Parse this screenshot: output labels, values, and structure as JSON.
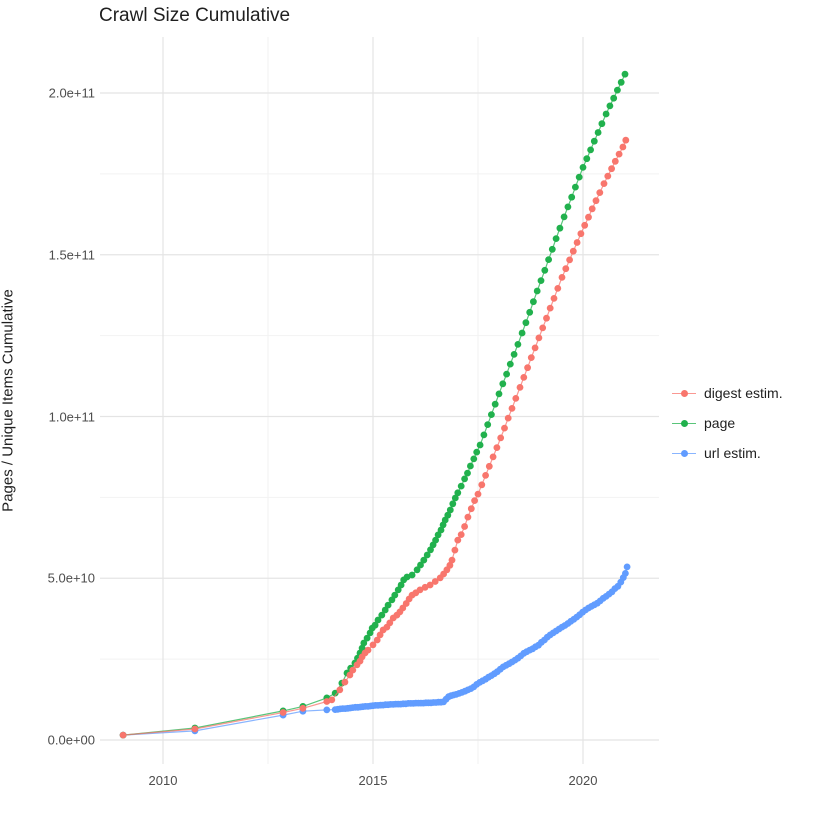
{
  "title": "Crawl Size Cumulative",
  "y_axis": {
    "label": "Pages / Unique Items Cumulative",
    "ticks": [
      "2.0e+11",
      "1.5e+11",
      "1.0e+11",
      "5.0e+10",
      "0.0e+00"
    ],
    "tick_values_billions": [
      200,
      150,
      100,
      50,
      0
    ]
  },
  "x_axis": {
    "ticks": [
      "2010",
      "2015",
      "2020"
    ],
    "tick_values": [
      2010,
      2015,
      2020
    ]
  },
  "legend": {
    "position": "right",
    "items": [
      {
        "label": "digest estim.",
        "color": "#F8766D"
      },
      {
        "label": "page",
        "color": "#21B14D"
      },
      {
        "label": "url estim.",
        "color": "#619CFF"
      }
    ]
  },
  "chart_data": {
    "type": "scatter",
    "subtype": "points-with-lines",
    "title": "Crawl Size Cumulative",
    "xlabel": "",
    "ylabel": "Pages / Unique Items Cumulative",
    "units": "billions (1e9) of pages / unique items",
    "xlim": [
      2008.5,
      2021.8
    ],
    "ylim_billions": [
      0,
      217
    ],
    "grid": true,
    "legend_position": "right",
    "series": [
      {
        "name": "digest estim.",
        "color": "#F8766D",
        "points": [
          [
            2009.05,
            1.5
          ],
          [
            2010.76,
            3.4
          ],
          [
            2012.86,
            8.5
          ],
          [
            2013.33,
            9.8
          ],
          [
            2013.9,
            11.9
          ],
          [
            2014.02,
            12.4
          ],
          [
            2014.21,
            15.5
          ],
          [
            2014.33,
            17.9
          ],
          [
            2014.45,
            20.1
          ],
          [
            2014.52,
            21.6
          ],
          [
            2014.62,
            23.2
          ],
          [
            2014.69,
            24.4
          ],
          [
            2014.74,
            25.7
          ],
          [
            2014.81,
            26.9
          ],
          [
            2014.88,
            27.8
          ],
          [
            2015.0,
            29.4
          ],
          [
            2015.1,
            30.9
          ],
          [
            2015.17,
            32.5
          ],
          [
            2015.24,
            34.0
          ],
          [
            2015.33,
            34.9
          ],
          [
            2015.4,
            36.2
          ],
          [
            2015.48,
            37.7
          ],
          [
            2015.57,
            38.6
          ],
          [
            2015.64,
            39.6
          ],
          [
            2015.71,
            40.8
          ],
          [
            2015.79,
            42.2
          ],
          [
            2015.86,
            43.6
          ],
          [
            2015.93,
            44.8
          ],
          [
            2016.02,
            45.5
          ],
          [
            2016.12,
            46.4
          ],
          [
            2016.24,
            47.2
          ],
          [
            2016.36,
            47.9
          ],
          [
            2016.48,
            49.0
          ],
          [
            2016.6,
            50.1
          ],
          [
            2016.68,
            51.3
          ],
          [
            2016.76,
            52.6
          ],
          [
            2016.83,
            54.0
          ],
          [
            2016.88,
            55.6
          ],
          [
            2016.95,
            58.7
          ],
          [
            2017.02,
            61.8
          ],
          [
            2017.1,
            63.5
          ],
          [
            2017.18,
            66.0
          ],
          [
            2017.26,
            68.9
          ],
          [
            2017.34,
            71.5
          ],
          [
            2017.42,
            74.0
          ],
          [
            2017.5,
            76.0
          ],
          [
            2017.59,
            78.9
          ],
          [
            2017.68,
            81.8
          ],
          [
            2017.77,
            84.6
          ],
          [
            2017.86,
            87.5
          ],
          [
            2017.95,
            90.4
          ],
          [
            2018.04,
            93.4
          ],
          [
            2018.13,
            96.4
          ],
          [
            2018.22,
            99.5
          ],
          [
            2018.31,
            102.5
          ],
          [
            2018.4,
            105.6
          ],
          [
            2018.5,
            109.0
          ],
          [
            2018.59,
            112.1
          ],
          [
            2018.68,
            115.1
          ],
          [
            2018.77,
            118.2
          ],
          [
            2018.86,
            121.2
          ],
          [
            2018.95,
            124.3
          ],
          [
            2019.04,
            127.4
          ],
          [
            2019.13,
            130.4
          ],
          [
            2019.22,
            133.5
          ],
          [
            2019.31,
            136.5
          ],
          [
            2019.4,
            139.6
          ],
          [
            2019.5,
            143.0
          ],
          [
            2019.59,
            145.7
          ],
          [
            2019.68,
            148.4
          ],
          [
            2019.77,
            151.1
          ],
          [
            2019.86,
            153.8
          ],
          [
            2019.95,
            156.5
          ],
          [
            2020.04,
            159.1
          ],
          [
            2020.13,
            161.6
          ],
          [
            2020.22,
            164.2
          ],
          [
            2020.31,
            166.7
          ],
          [
            2020.4,
            169.2
          ],
          [
            2020.5,
            172.0
          ],
          [
            2020.59,
            174.3
          ],
          [
            2020.68,
            176.6
          ],
          [
            2020.77,
            178.9
          ],
          [
            2020.86,
            181.1
          ],
          [
            2020.95,
            183.3
          ],
          [
            2021.02,
            185.4
          ]
        ]
      },
      {
        "name": "page",
        "color": "#21B14D",
        "points": [
          [
            2009.05,
            1.5
          ],
          [
            2010.76,
            3.7
          ],
          [
            2012.86,
            9.0
          ],
          [
            2013.33,
            10.4
          ],
          [
            2013.9,
            13.0
          ],
          [
            2014.1,
            14.5
          ],
          [
            2014.26,
            17.6
          ],
          [
            2014.38,
            20.7
          ],
          [
            2014.47,
            22.2
          ],
          [
            2014.57,
            23.8
          ],
          [
            2014.63,
            25.3
          ],
          [
            2014.69,
            26.9
          ],
          [
            2014.74,
            28.4
          ],
          [
            2014.78,
            30.0
          ],
          [
            2014.86,
            31.5
          ],
          [
            2014.93,
            33.1
          ],
          [
            2014.98,
            34.6
          ],
          [
            2015.05,
            35.5
          ],
          [
            2015.12,
            37.1
          ],
          [
            2015.21,
            38.6
          ],
          [
            2015.29,
            40.2
          ],
          [
            2015.36,
            41.7
          ],
          [
            2015.45,
            43.3
          ],
          [
            2015.52,
            44.8
          ],
          [
            2015.6,
            46.4
          ],
          [
            2015.67,
            47.9
          ],
          [
            2015.73,
            49.5
          ],
          [
            2015.81,
            50.4
          ],
          [
            2015.93,
            51.0
          ],
          [
            2016.05,
            52.6
          ],
          [
            2016.13,
            54.1
          ],
          [
            2016.21,
            55.6
          ],
          [
            2016.29,
            57.2
          ],
          [
            2016.37,
            58.8
          ],
          [
            2016.43,
            60.3
          ],
          [
            2016.49,
            61.8
          ],
          [
            2016.55,
            63.4
          ],
          [
            2016.62,
            64.9
          ],
          [
            2016.67,
            66.5
          ],
          [
            2016.72,
            68.0
          ],
          [
            2016.78,
            69.5
          ],
          [
            2016.84,
            71.1
          ],
          [
            2016.9,
            73.0
          ],
          [
            2016.96,
            74.8
          ],
          [
            2017.02,
            76.4
          ],
          [
            2017.1,
            78.5
          ],
          [
            2017.18,
            80.7
          ],
          [
            2017.25,
            82.5
          ],
          [
            2017.32,
            84.7
          ],
          [
            2017.4,
            86.9
          ],
          [
            2017.47,
            89.0
          ],
          [
            2017.55,
            91.2
          ],
          [
            2017.64,
            94.3
          ],
          [
            2017.73,
            97.5
          ],
          [
            2017.82,
            100.6
          ],
          [
            2017.91,
            103.8
          ],
          [
            2018.0,
            107.0
          ],
          [
            2018.09,
            110.1
          ],
          [
            2018.18,
            113.1
          ],
          [
            2018.27,
            116.2
          ],
          [
            2018.36,
            119.2
          ],
          [
            2018.45,
            122.3
          ],
          [
            2018.55,
            125.8
          ],
          [
            2018.64,
            129.0
          ],
          [
            2018.73,
            132.2
          ],
          [
            2018.82,
            135.5
          ],
          [
            2018.91,
            138.8
          ],
          [
            2019.0,
            142.0
          ],
          [
            2019.09,
            145.2
          ],
          [
            2019.18,
            148.5
          ],
          [
            2019.27,
            151.7
          ],
          [
            2019.36,
            155.0
          ],
          [
            2019.45,
            158.2
          ],
          [
            2019.55,
            161.7
          ],
          [
            2019.64,
            164.8
          ],
          [
            2019.73,
            167.8
          ],
          [
            2019.82,
            170.9
          ],
          [
            2019.91,
            174.0
          ],
          [
            2020.0,
            177.0
          ],
          [
            2020.09,
            179.7
          ],
          [
            2020.18,
            182.4
          ],
          [
            2020.27,
            185.1
          ],
          [
            2020.36,
            187.8
          ],
          [
            2020.45,
            190.5
          ],
          [
            2020.55,
            193.5
          ],
          [
            2020.64,
            196.0
          ],
          [
            2020.73,
            198.4
          ],
          [
            2020.82,
            200.9
          ],
          [
            2020.91,
            203.3
          ],
          [
            2021.0,
            205.8
          ]
        ]
      },
      {
        "name": "url estim.",
        "color": "#619CFF",
        "points": [
          [
            2009.05,
            1.5
          ],
          [
            2010.76,
            2.8
          ],
          [
            2012.86,
            7.7
          ],
          [
            2013.33,
            8.9
          ],
          [
            2013.9,
            9.3
          ],
          [
            2014.1,
            9.4
          ],
          [
            2014.16,
            9.5
          ],
          [
            2014.22,
            9.6
          ],
          [
            2014.28,
            9.7
          ],
          [
            2014.34,
            9.7
          ],
          [
            2014.4,
            9.8
          ],
          [
            2014.46,
            9.9
          ],
          [
            2014.52,
            10.0
          ],
          [
            2014.58,
            10.1
          ],
          [
            2014.64,
            10.1
          ],
          [
            2014.7,
            10.2
          ],
          [
            2014.76,
            10.3
          ],
          [
            2014.82,
            10.4
          ],
          [
            2014.88,
            10.4
          ],
          [
            2014.94,
            10.5
          ],
          [
            2015.0,
            10.6
          ],
          [
            2015.06,
            10.7
          ],
          [
            2015.12,
            10.7
          ],
          [
            2015.18,
            10.8
          ],
          [
            2015.24,
            10.8
          ],
          [
            2015.3,
            10.9
          ],
          [
            2015.36,
            10.9
          ],
          [
            2015.42,
            11.0
          ],
          [
            2015.48,
            11.0
          ],
          [
            2015.54,
            11.1
          ],
          [
            2015.6,
            11.1
          ],
          [
            2015.66,
            11.1
          ],
          [
            2015.72,
            11.2
          ],
          [
            2015.78,
            11.2
          ],
          [
            2015.84,
            11.3
          ],
          [
            2015.9,
            11.3
          ],
          [
            2015.96,
            11.3
          ],
          [
            2016.02,
            11.4
          ],
          [
            2016.08,
            11.4
          ],
          [
            2016.14,
            11.4
          ],
          [
            2016.2,
            11.4
          ],
          [
            2016.26,
            11.5
          ],
          [
            2016.32,
            11.5
          ],
          [
            2016.38,
            11.5
          ],
          [
            2016.44,
            11.6
          ],
          [
            2016.5,
            11.6
          ],
          [
            2016.56,
            11.7
          ],
          [
            2016.62,
            11.7
          ],
          [
            2016.68,
            11.8
          ],
          [
            2016.74,
            12.6
          ],
          [
            2016.8,
            13.4
          ],
          [
            2016.86,
            13.7
          ],
          [
            2016.92,
            13.9
          ],
          [
            2016.98,
            14.1
          ],
          [
            2017.05,
            14.4
          ],
          [
            2017.12,
            14.7
          ],
          [
            2017.19,
            15.1
          ],
          [
            2017.26,
            15.5
          ],
          [
            2017.33,
            15.9
          ],
          [
            2017.4,
            16.4
          ],
          [
            2017.47,
            17.2
          ],
          [
            2017.54,
            17.8
          ],
          [
            2017.61,
            18.3
          ],
          [
            2017.68,
            18.8
          ],
          [
            2017.75,
            19.4
          ],
          [
            2017.82,
            19.9
          ],
          [
            2017.89,
            20.5
          ],
          [
            2017.96,
            21.1
          ],
          [
            2018.03,
            21.9
          ],
          [
            2018.1,
            22.6
          ],
          [
            2018.17,
            23.1
          ],
          [
            2018.24,
            23.6
          ],
          [
            2018.31,
            24.1
          ],
          [
            2018.38,
            24.7
          ],
          [
            2018.45,
            25.3
          ],
          [
            2018.52,
            26.0
          ],
          [
            2018.59,
            26.8
          ],
          [
            2018.66,
            27.3
          ],
          [
            2018.73,
            27.8
          ],
          [
            2018.8,
            28.2
          ],
          [
            2018.87,
            28.8
          ],
          [
            2018.94,
            29.3
          ],
          [
            2019.01,
            30.2
          ],
          [
            2019.08,
            30.9
          ],
          [
            2019.15,
            31.8
          ],
          [
            2019.22,
            32.5
          ],
          [
            2019.29,
            33.1
          ],
          [
            2019.36,
            33.7
          ],
          [
            2019.43,
            34.3
          ],
          [
            2019.5,
            34.9
          ],
          [
            2019.57,
            35.4
          ],
          [
            2019.64,
            36.0
          ],
          [
            2019.71,
            36.7
          ],
          [
            2019.78,
            37.3
          ],
          [
            2019.85,
            38.0
          ],
          [
            2019.92,
            38.7
          ],
          [
            2019.99,
            39.5
          ],
          [
            2020.06,
            40.2
          ],
          [
            2020.13,
            40.8
          ],
          [
            2020.2,
            41.3
          ],
          [
            2020.27,
            41.8
          ],
          [
            2020.34,
            42.3
          ],
          [
            2020.41,
            43.0
          ],
          [
            2020.48,
            43.8
          ],
          [
            2020.55,
            44.4
          ],
          [
            2020.62,
            45.1
          ],
          [
            2020.69,
            45.8
          ],
          [
            2020.76,
            46.8
          ],
          [
            2020.83,
            47.5
          ],
          [
            2020.9,
            48.8
          ],
          [
            2020.96,
            50.2
          ],
          [
            2021.01,
            51.5
          ],
          [
            2021.05,
            53.5
          ]
        ]
      }
    ]
  }
}
